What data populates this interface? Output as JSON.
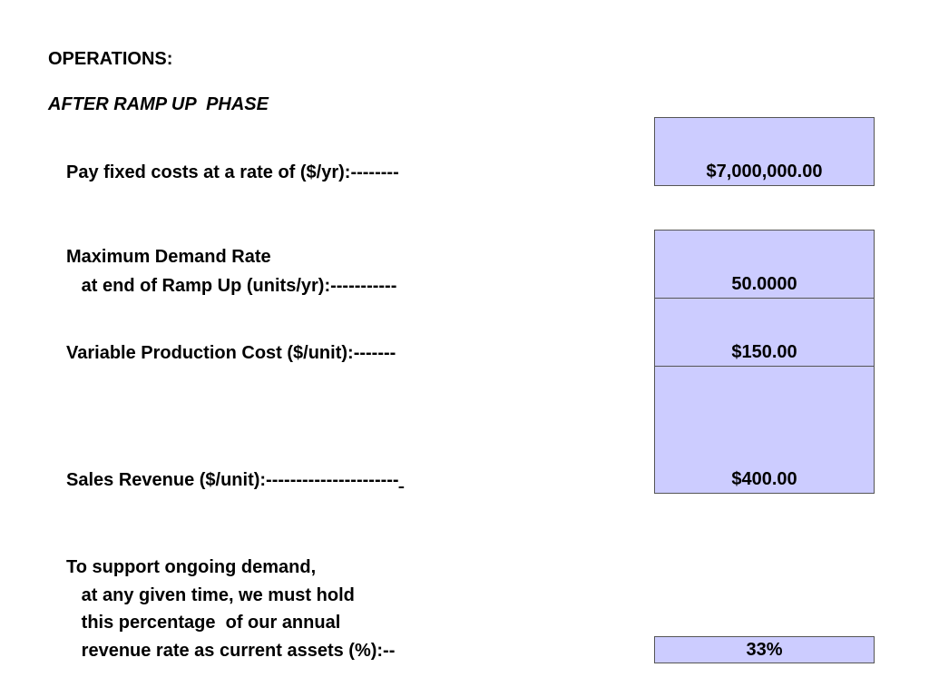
{
  "heading": "OPERATIONS:",
  "subheading": "AFTER RAMP UP  PHASE",
  "fixed_costs": {
    "label": "Pay fixed costs at a rate of ($/yr):--------",
    "value": "$7,000,000.00"
  },
  "max_demand": {
    "label_line1": "Maximum Demand Rate",
    "label_line2": "   at end of Ramp Up (units/yr):-----------",
    "value": "50.0000"
  },
  "variable_cost": {
    "label": "Variable Production Cost ($/unit):-------",
    "value": "$150.00"
  },
  "sales_revenue": {
    "label": "Sales Revenue ($/unit):----------------------",
    "trailing": " ",
    "value": "$400.00"
  },
  "current_assets": {
    "label_line1": "To support ongoing demand,",
    "label_line2": "   at any given time, we must hold",
    "label_line3": "   this percentage  of our annual",
    "label_line4": "   revenue rate as current assets (%):--",
    "value": "33%"
  },
  "colors": {
    "input_cell_fill": "#ccccff",
    "input_cell_border": "#555555"
  }
}
